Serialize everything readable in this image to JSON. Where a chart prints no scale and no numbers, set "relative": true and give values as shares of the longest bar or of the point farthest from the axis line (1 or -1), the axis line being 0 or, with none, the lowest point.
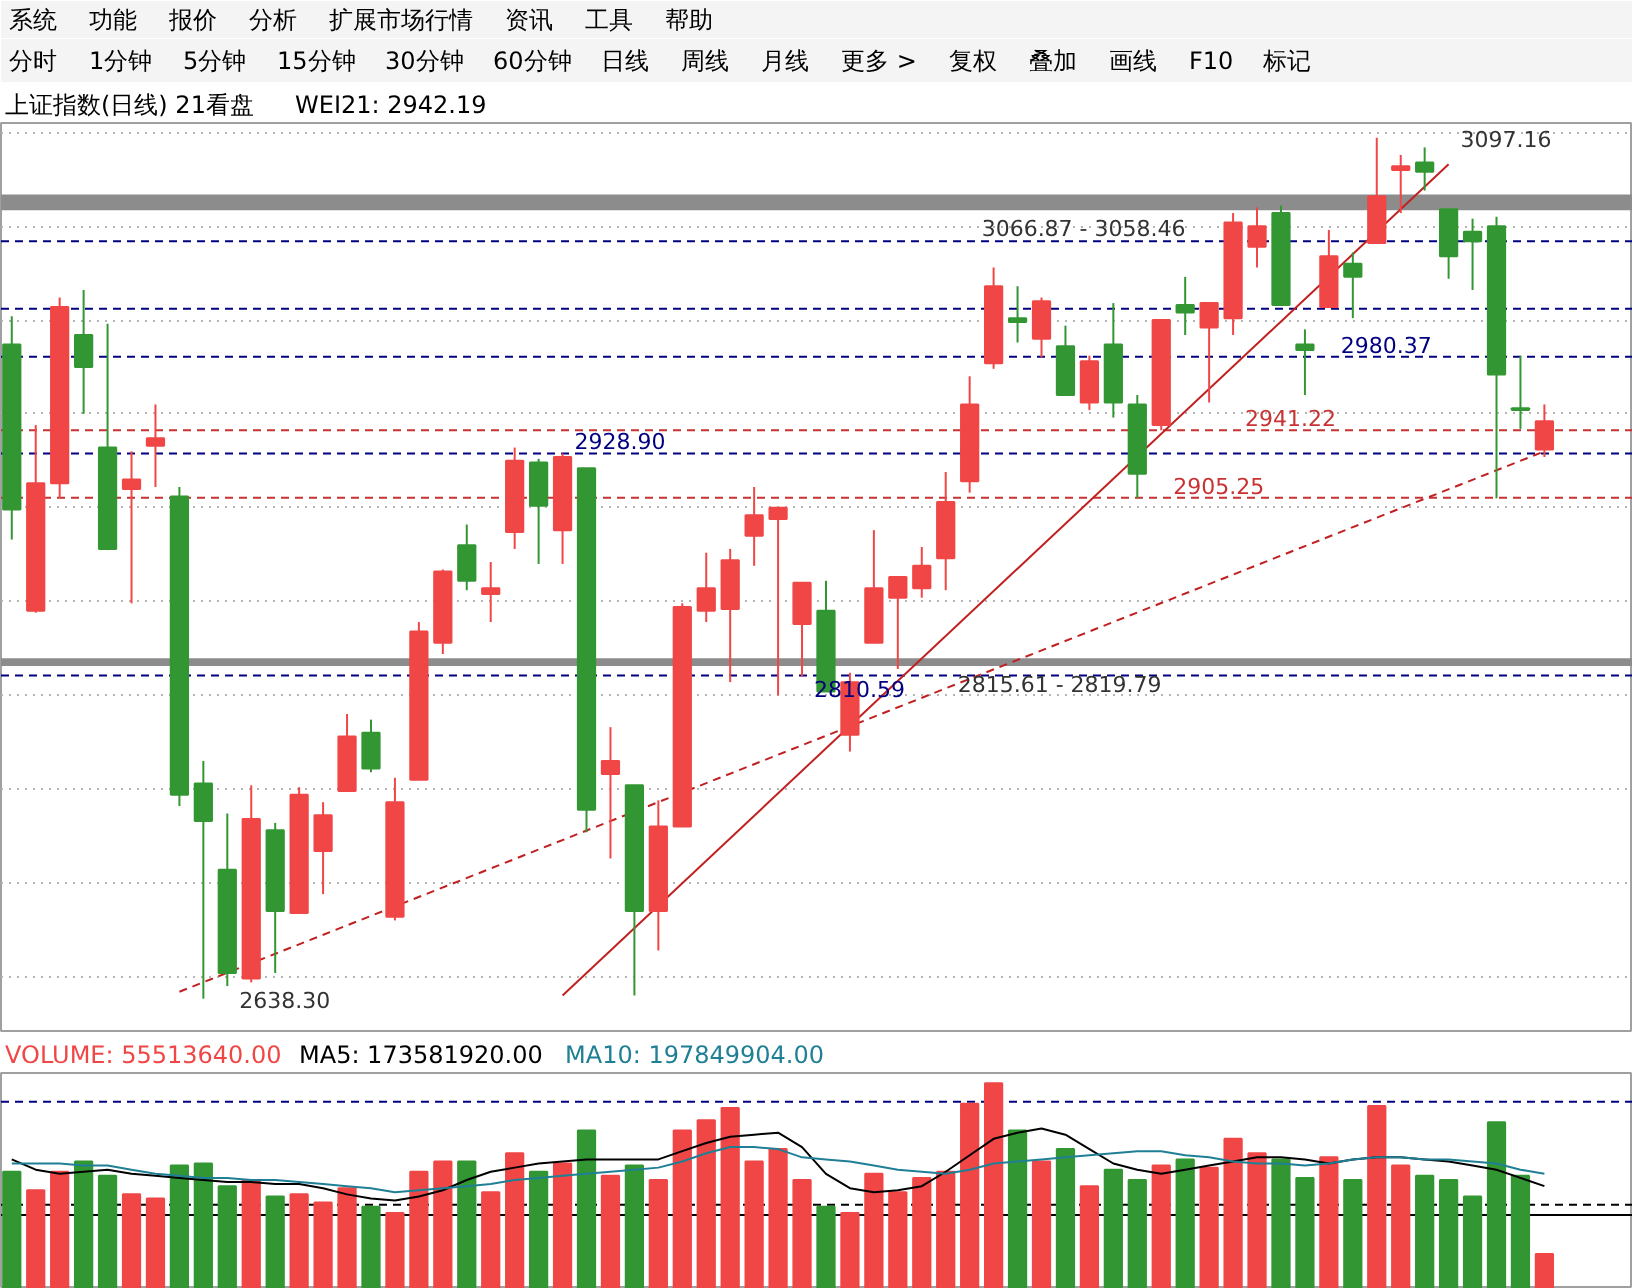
{
  "chart_data": [
    {
      "type": "other",
      "annotations": [
        "系统",
        "功能",
        "报价",
        "分析",
        "扩展市场行情",
        "资讯",
        "工具",
        "帮助"
      ]
    },
    {
      "type": "other",
      "annotations": [
        "分时",
        "1分钟",
        "5分钟",
        "15分钟",
        "30分钟",
        "60分钟",
        "日线",
        "周线",
        "月线",
        "更多 >",
        "复权",
        "叠加",
        "画线",
        "F10",
        "标记"
      ]
    },
    {
      "type": "candlestick",
      "title": "上证指数(日线) 21看盘",
      "subtitle": "WEI21: 2942.19",
      "categories": [
        null,
        null,
        null,
        null,
        null,
        null,
        null,
        null,
        null,
        null,
        null,
        null,
        null,
        null,
        null,
        null,
        null,
        null,
        null,
        null,
        null,
        null,
        null,
        null,
        null,
        null,
        null,
        null,
        null,
        null,
        null,
        null,
        null,
        null,
        null,
        null,
        null,
        null,
        null,
        null,
        null,
        null,
        null,
        null,
        null,
        null,
        null,
        null,
        null,
        null,
        null,
        null,
        null,
        null,
        null,
        null,
        null,
        null,
        null,
        null,
        null,
        null,
        null,
        null,
        null
      ],
      "ohlc": [
        [
          2987,
          3002,
          2883,
          2899
        ],
        [
          2845,
          2944,
          2844,
          2913
        ],
        [
          2913,
          3012,
          2905,
          3007
        ],
        [
          2992,
          3016,
          2950,
          2975
        ],
        [
          2932,
          2998,
          2878,
          2878
        ],
        [
          2910,
          2930,
          2849,
          2915
        ],
        [
          2933,
          2955,
          2911,
          2937
        ],
        [
          2906,
          2911,
          2741,
          2747
        ],
        [
          2753,
          2765,
          2638.3,
          2733
        ],
        [
          2707,
          2737,
          2645,
          2652
        ],
        [
          2649,
          2752,
          2647,
          2734
        ],
        [
          2728,
          2732,
          2652,
          2685
        ],
        [
          2684,
          2751,
          2684,
          2747
        ],
        [
          2717,
          2743,
          2694,
          2736
        ],
        [
          2749,
          2790,
          2749,
          2778
        ],
        [
          2780,
          2787,
          2759,
          2761
        ],
        [
          2682,
          2756,
          2680,
          2743
        ],
        [
          2755,
          2839,
          2755,
          2834
        ],
        [
          2828,
          2867,
          2822,
          2866
        ],
        [
          2880,
          2891,
          2856,
          2861
        ],
        [
          2854,
          2871,
          2839,
          2857
        ],
        [
          2887,
          2932,
          2878,
          2925
        ],
        [
          2924,
          2926,
          2870,
          2901
        ],
        [
          2888,
          2928.9,
          2870,
          2927
        ],
        [
          2921,
          2921,
          2727,
          2739
        ],
        [
          2758,
          2783,
          2713,
          2765
        ],
        [
          2752,
          2752,
          2640,
          2685
        ],
        [
          2685,
          2744,
          2664,
          2730
        ],
        [
          2730,
          2849,
          2730,
          2847
        ],
        [
          2845,
          2876,
          2839,
          2857
        ],
        [
          2846,
          2878,
          2807,
          2872
        ],
        [
          2885,
          2911,
          2869,
          2896
        ],
        [
          2894,
          2900,
          2800,
          2900
        ],
        [
          2838,
          2860,
          2810,
          2860
        ],
        [
          2845,
          2861,
          2802,
          2802
        ],
        [
          2779,
          2812,
          2770,
          2807
        ],
        [
          2828,
          2888,
          2828,
          2857
        ],
        [
          2852,
          2863,
          2814,
          2863
        ],
        [
          2857,
          2879,
          2852,
          2869
        ],
        [
          2873,
          2919,
          2856,
          2903
        ],
        [
          2914,
          2970,
          2908,
          2955
        ],
        [
          2977,
          3028,
          2974,
          3018
        ],
        [
          3001,
          3018,
          2988,
          2999
        ],
        [
          2990,
          3012,
          2980,
          3010
        ],
        [
          2986,
          2997,
          2960,
          2960
        ],
        [
          2956,
          2981,
          2952,
          2978
        ],
        [
          2987,
          3009,
          2948,
          2956
        ],
        [
          2955,
          2960,
          2905.25,
          2918
        ],
        [
          2944,
          3000,
          2941.22,
          3000
        ],
        [
          3008,
          3023,
          2992,
          3004
        ],
        [
          2996,
          3009,
          2956,
          3009
        ],
        [
          3001,
          3057,
          2992,
          3052
        ],
        [
          3039,
          3060,
          3028,
          3050
        ],
        [
          3057,
          3061,
          3008,
          3008
        ],
        [
          2987,
          2995,
          2960,
          2984
        ],
        [
          3007,
          3048,
          3007,
          3034
        ],
        [
          3030,
          3036,
          3001,
          3023
        ],
        [
          3041,
          3097.16,
          3041,
          3066
        ],
        [
          3080,
          3088,
          3057,
          3082
        ],
        [
          3084,
          3092,
          3069,
          3079
        ],
        [
          3059,
          3059,
          3022,
          3034
        ],
        [
          3047,
          3054,
          3016,
          3042
        ],
        [
          3050,
          3055,
          2905,
          2971
        ],
        [
          2953,
          2981,
          2942,
          2952
        ],
        [
          2931,
          2955,
          2927,
          2946
        ]
      ],
      "colors": [
        "#329632",
        "#f04646",
        "#f04646",
        "#329632",
        "#329632",
        "#f04646",
        "#f04646",
        "#329632",
        "#329632",
        "#329632",
        "#f04646",
        "#329632",
        "#f04646",
        "#f04646",
        "#f04646",
        "#329632",
        "#f04646",
        "#f04646",
        "#f04646",
        "#329632",
        "#f04646",
        "#f04646",
        "#329632",
        "#f04646",
        "#329632",
        "#f04646",
        "#329632",
        "#f04646",
        "#f04646",
        "#f04646",
        "#f04646",
        "#f04646",
        "#f04646",
        "#f04646",
        "#329632",
        "#f04646",
        "#f04646",
        "#f04646",
        "#f04646",
        "#f04646",
        "#f04646",
        "#f04646",
        "#329632",
        "#f04646",
        "#329632",
        "#f04646",
        "#329632",
        "#329632",
        "#f04646",
        "#329632",
        "#f04646",
        "#f04646",
        "#f04646",
        "#329632",
        "#329632",
        "#f04646",
        "#329632",
        "#f04646",
        "#f04646",
        "#329632",
        "#329632",
        "#329632",
        "#329632",
        "#329632",
        "#f04646"
      ],
      "series": [
        {
          "type": "line",
          "color": "#c02020",
          "line_style": "solid",
          "values": [
            null,
            null,
            null,
            null,
            null,
            null,
            null,
            null,
            null,
            null,
            null,
            null,
            null,
            null,
            null,
            null,
            null,
            null,
            null,
            null,
            null,
            null,
            null,
            2640,
            null,
            null,
            null,
            null,
            null,
            null,
            null,
            null,
            null,
            null,
            null,
            null,
            null,
            null,
            null,
            null,
            null,
            null,
            null,
            null,
            null,
            null,
            null,
            null,
            null,
            null,
            null,
            null,
            null,
            null,
            null,
            null,
            null,
            null,
            null,
            null,
            3083,
            null,
            null,
            null,
            null
          ]
        },
        {
          "type": "line",
          "color": "#c02020",
          "line_style": "dashed",
          "values": [
            null,
            null,
            null,
            null,
            null,
            null,
            null,
            2642,
            null,
            null,
            null,
            null,
            null,
            null,
            null,
            null,
            null,
            null,
            null,
            null,
            null,
            null,
            null,
            null,
            null,
            null,
            null,
            null,
            null,
            null,
            null,
            null,
            null,
            null,
            null,
            null,
            null,
            null,
            null,
            null,
            null,
            null,
            null,
            null,
            null,
            null,
            null,
            null,
            null,
            null,
            null,
            null,
            null,
            null,
            null,
            null,
            null,
            null,
            null,
            null,
            null,
            null,
            null,
            null,
            2930
          ]
        }
      ],
      "ylim": [
        2620,
        3105
      ],
      "yticks": [
        {
          "value": 2650,
          "label": null
        },
        {
          "value": 2700,
          "label": null
        },
        {
          "value": 2750,
          "label": null
        },
        {
          "value": 2800,
          "label": null
        },
        {
          "value": 2850,
          "label": null
        },
        {
          "value": 2900,
          "label": null
        },
        {
          "value": 2950,
          "label": null
        },
        {
          "value": 3000,
          "label": null
        },
        {
          "value": 3050,
          "label": null
        },
        {
          "value": 3100,
          "label": null
        }
      ],
      "grid": "y",
      "tick_labels": false,
      "ref_lines": [
        {
          "axis": "y",
          "value": 3042,
          "color": "#000080",
          "line_style": "dashed"
        },
        {
          "axis": "y",
          "value": 3006,
          "color": "#000080",
          "line_style": "dashed"
        },
        {
          "axis": "y",
          "value": 2980.37,
          "label": "2980.37",
          "color": "#000080",
          "line_style": "dashed"
        },
        {
          "axis": "y",
          "value": 2928.9,
          "label": "2928.90",
          "color": "#000080",
          "line_style": "dashed"
        },
        {
          "axis": "y",
          "value": 2941.22,
          "label": "2941.22",
          "color": "#c83232",
          "line_style": "dashed"
        },
        {
          "axis": "y",
          "value": 2905.25,
          "label": "2905.25",
          "color": "#c83232",
          "line_style": "dashed"
        },
        {
          "axis": "y",
          "value": 2810.59,
          "label": "2810.59",
          "color": "#000080",
          "line_style": "dashed"
        }
      ],
      "bands": [
        {
          "axis": "y",
          "from": 3058.46,
          "to": 3066.87,
          "label": "3066.87 - 3058.46",
          "color": "#8c8c8c"
        },
        {
          "axis": "y",
          "from": 2815.61,
          "to": 2819.79,
          "label": "2815.61 - 2819.79",
          "color": "#8c8c8c"
        }
      ],
      "annotations": [
        "2638.30",
        "3097.16"
      ]
    },
    {
      "type": "bar",
      "relative": true,
      "categories": [
        null,
        null,
        null,
        null,
        null,
        null,
        null,
        null,
        null,
        null,
        null,
        null,
        null,
        null,
        null,
        null,
        null,
        null,
        null,
        null,
        null,
        null,
        null,
        null,
        null,
        null,
        null,
        null,
        null,
        null,
        null,
        null,
        null,
        null,
        null,
        null,
        null,
        null,
        null,
        null,
        null,
        null,
        null,
        null,
        null,
        null,
        null,
        null,
        null,
        null,
        null,
        null,
        null,
        null,
        null,
        null,
        null,
        null,
        null,
        null,
        null,
        null,
        null,
        null,
        null
      ],
      "series": [
        {
          "name": "VOLUME: 55513640.00",
          "type": "bar",
          "colors": [
            "#329632",
            "#f04646",
            "#f04646",
            "#329632",
            "#329632",
            "#f04646",
            "#f04646",
            "#329632",
            "#329632",
            "#329632",
            "#f04646",
            "#329632",
            "#f04646",
            "#f04646",
            "#f04646",
            "#329632",
            "#f04646",
            "#f04646",
            "#f04646",
            "#329632",
            "#f04646",
            "#f04646",
            "#329632",
            "#f04646",
            "#329632",
            "#f04646",
            "#329632",
            "#f04646",
            "#f04646",
            "#f04646",
            "#f04646",
            "#f04646",
            "#f04646",
            "#f04646",
            "#329632",
            "#f04646",
            "#f04646",
            "#f04646",
            "#f04646",
            "#f04646",
            "#f04646",
            "#f04646",
            "#329632",
            "#f04646",
            "#329632",
            "#f04646",
            "#329632",
            "#329632",
            "#f04646",
            "#329632",
            "#f04646",
            "#f04646",
            "#f04646",
            "#329632",
            "#329632",
            "#f04646",
            "#329632",
            "#f04646",
            "#f04646",
            "#329632",
            "#329632",
            "#329632",
            "#329632",
            "#329632",
            "#f04646"
          ],
          "values": [
            0.57,
            0.48,
            0.57,
            0.62,
            0.55,
            0.46,
            0.44,
            0.6,
            0.61,
            0.5,
            0.53,
            0.45,
            0.46,
            0.42,
            0.49,
            0.4,
            0.37,
            0.57,
            0.62,
            0.62,
            0.47,
            0.66,
            0.57,
            0.61,
            0.77,
            0.55,
            0.6,
            0.53,
            0.77,
            0.82,
            0.88,
            0.62,
            0.68,
            0.53,
            0.4,
            0.37,
            0.56,
            0.47,
            0.54,
            0.57,
            0.9,
            1,
            0.77,
            0.62,
            0.68,
            0.5,
            0.58,
            0.53,
            0.6,
            0.63,
            0.59,
            0.73,
            0.66,
            0.63,
            0.54,
            0.64,
            0.53,
            0.89,
            0.6,
            0.55,
            0.53,
            0.45,
            0.81,
            0.55,
            0.17
          ]
        },
        {
          "name": "MA5: 173581920.00",
          "type": "line",
          "color": "#000000",
          "values": [
            0.63,
            0.58,
            0.56,
            0.57,
            0.58,
            0.56,
            0.55,
            0.54,
            0.53,
            0.52,
            0.52,
            0.51,
            0.51,
            0.49,
            0.46,
            0.44,
            0.43,
            0.45,
            0.48,
            0.53,
            0.57,
            0.59,
            0.61,
            0.62,
            0.63,
            0.63,
            0.63,
            0.63,
            0.67,
            0.71,
            0.74,
            0.75,
            0.76,
            0.69,
            0.56,
            0.49,
            0.47,
            0.48,
            0.5,
            0.57,
            0.65,
            0.73,
            0.76,
            0.78,
            0.75,
            0.68,
            0.61,
            0.58,
            0.56,
            0.58,
            0.6,
            0.62,
            0.64,
            0.64,
            0.63,
            0.61,
            0.63,
            0.64,
            0.64,
            0.63,
            0.62,
            0.6,
            0.58,
            0.54,
            0.5
          ]
        },
        {
          "name": "MA10: 197849904.00",
          "type": "line",
          "color": "#1f7f95",
          "values": [
            0.61,
            0.61,
            0.61,
            0.6,
            0.6,
            0.58,
            0.56,
            0.55,
            0.54,
            0.54,
            0.53,
            0.53,
            0.52,
            0.51,
            0.5,
            0.49,
            0.47,
            0.48,
            0.49,
            0.5,
            0.51,
            0.53,
            0.54,
            0.55,
            0.56,
            0.57,
            0.58,
            0.59,
            0.62,
            0.66,
            0.69,
            0.69,
            0.68,
            0.64,
            0.63,
            0.62,
            0.6,
            0.58,
            0.57,
            0.56,
            0.58,
            0.61,
            0.62,
            0.63,
            0.64,
            0.65,
            0.66,
            0.67,
            0.67,
            0.65,
            0.64,
            0.62,
            0.61,
            0.61,
            0.6,
            0.61,
            0.63,
            0.64,
            0.64,
            0.63,
            0.63,
            0.62,
            0.61,
            0.58,
            0.56
          ]
        }
      ],
      "ref_lines": [
        {
          "axis": "y",
          "value": 0.91,
          "color": "#000080",
          "line_style": "dashed"
        },
        {
          "axis": "y",
          "value": 0.41,
          "color": "#000000",
          "line_style": "dashed"
        },
        {
          "axis": "y",
          "value": 0.36,
          "color": "#000000",
          "line_style": "solid"
        }
      ]
    }
  ]
}
